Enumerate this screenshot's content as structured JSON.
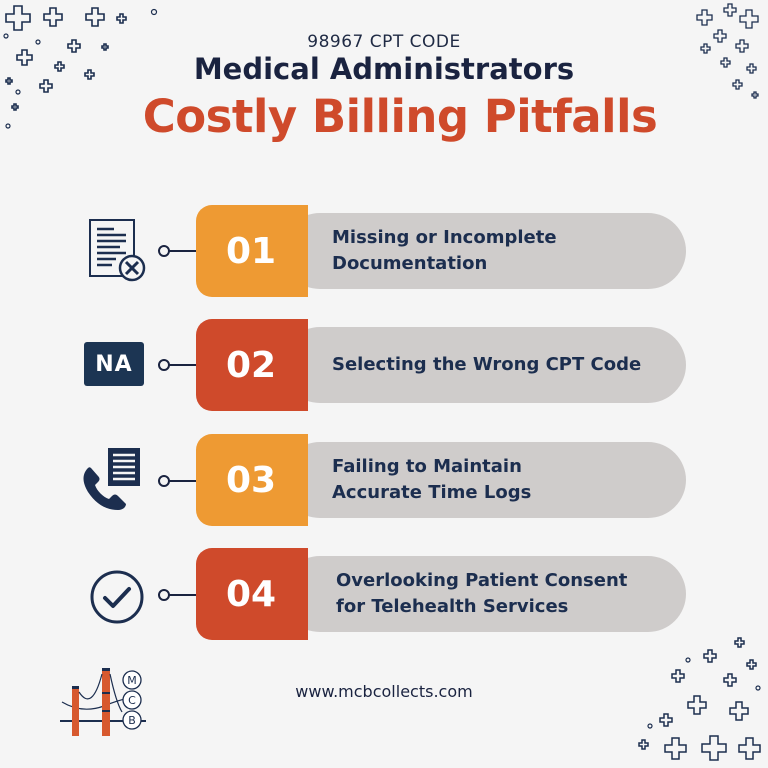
{
  "header": {
    "subtitle": "98967 CPT CODE",
    "heading": "Medical Administrators",
    "title": "Costly Billing Pitfalls"
  },
  "colors": {
    "background": "#f5f5f5",
    "navy": "#1a2340",
    "orange": "#ee9a33",
    "red_orange": "#cf4a2b",
    "pill_gray": "#cfcccb"
  },
  "items": [
    {
      "number": "01",
      "text": "Missing or Incomplete\nDocumentation",
      "icon": "document-x-icon",
      "badge_color": "#ee9a33"
    },
    {
      "number": "02",
      "text": "Selecting the Wrong CPT Code",
      "icon": "na-icon",
      "badge_color": "#cf4a2b"
    },
    {
      "number": "03",
      "text": "Failing to Maintain\nAccurate Time Logs",
      "icon": "phone-document-icon",
      "badge_color": "#ee9a33"
    },
    {
      "number": "04",
      "text": "Overlooking Patient Consent\nfor Telehealth Services",
      "icon": "checkmark-circle-icon",
      "badge_color": "#cf4a2b"
    }
  ],
  "na_label": "NA",
  "logo": {
    "letters": [
      "M",
      "C",
      "B"
    ]
  },
  "footer": {
    "url": "www.mcbcollects.com"
  }
}
